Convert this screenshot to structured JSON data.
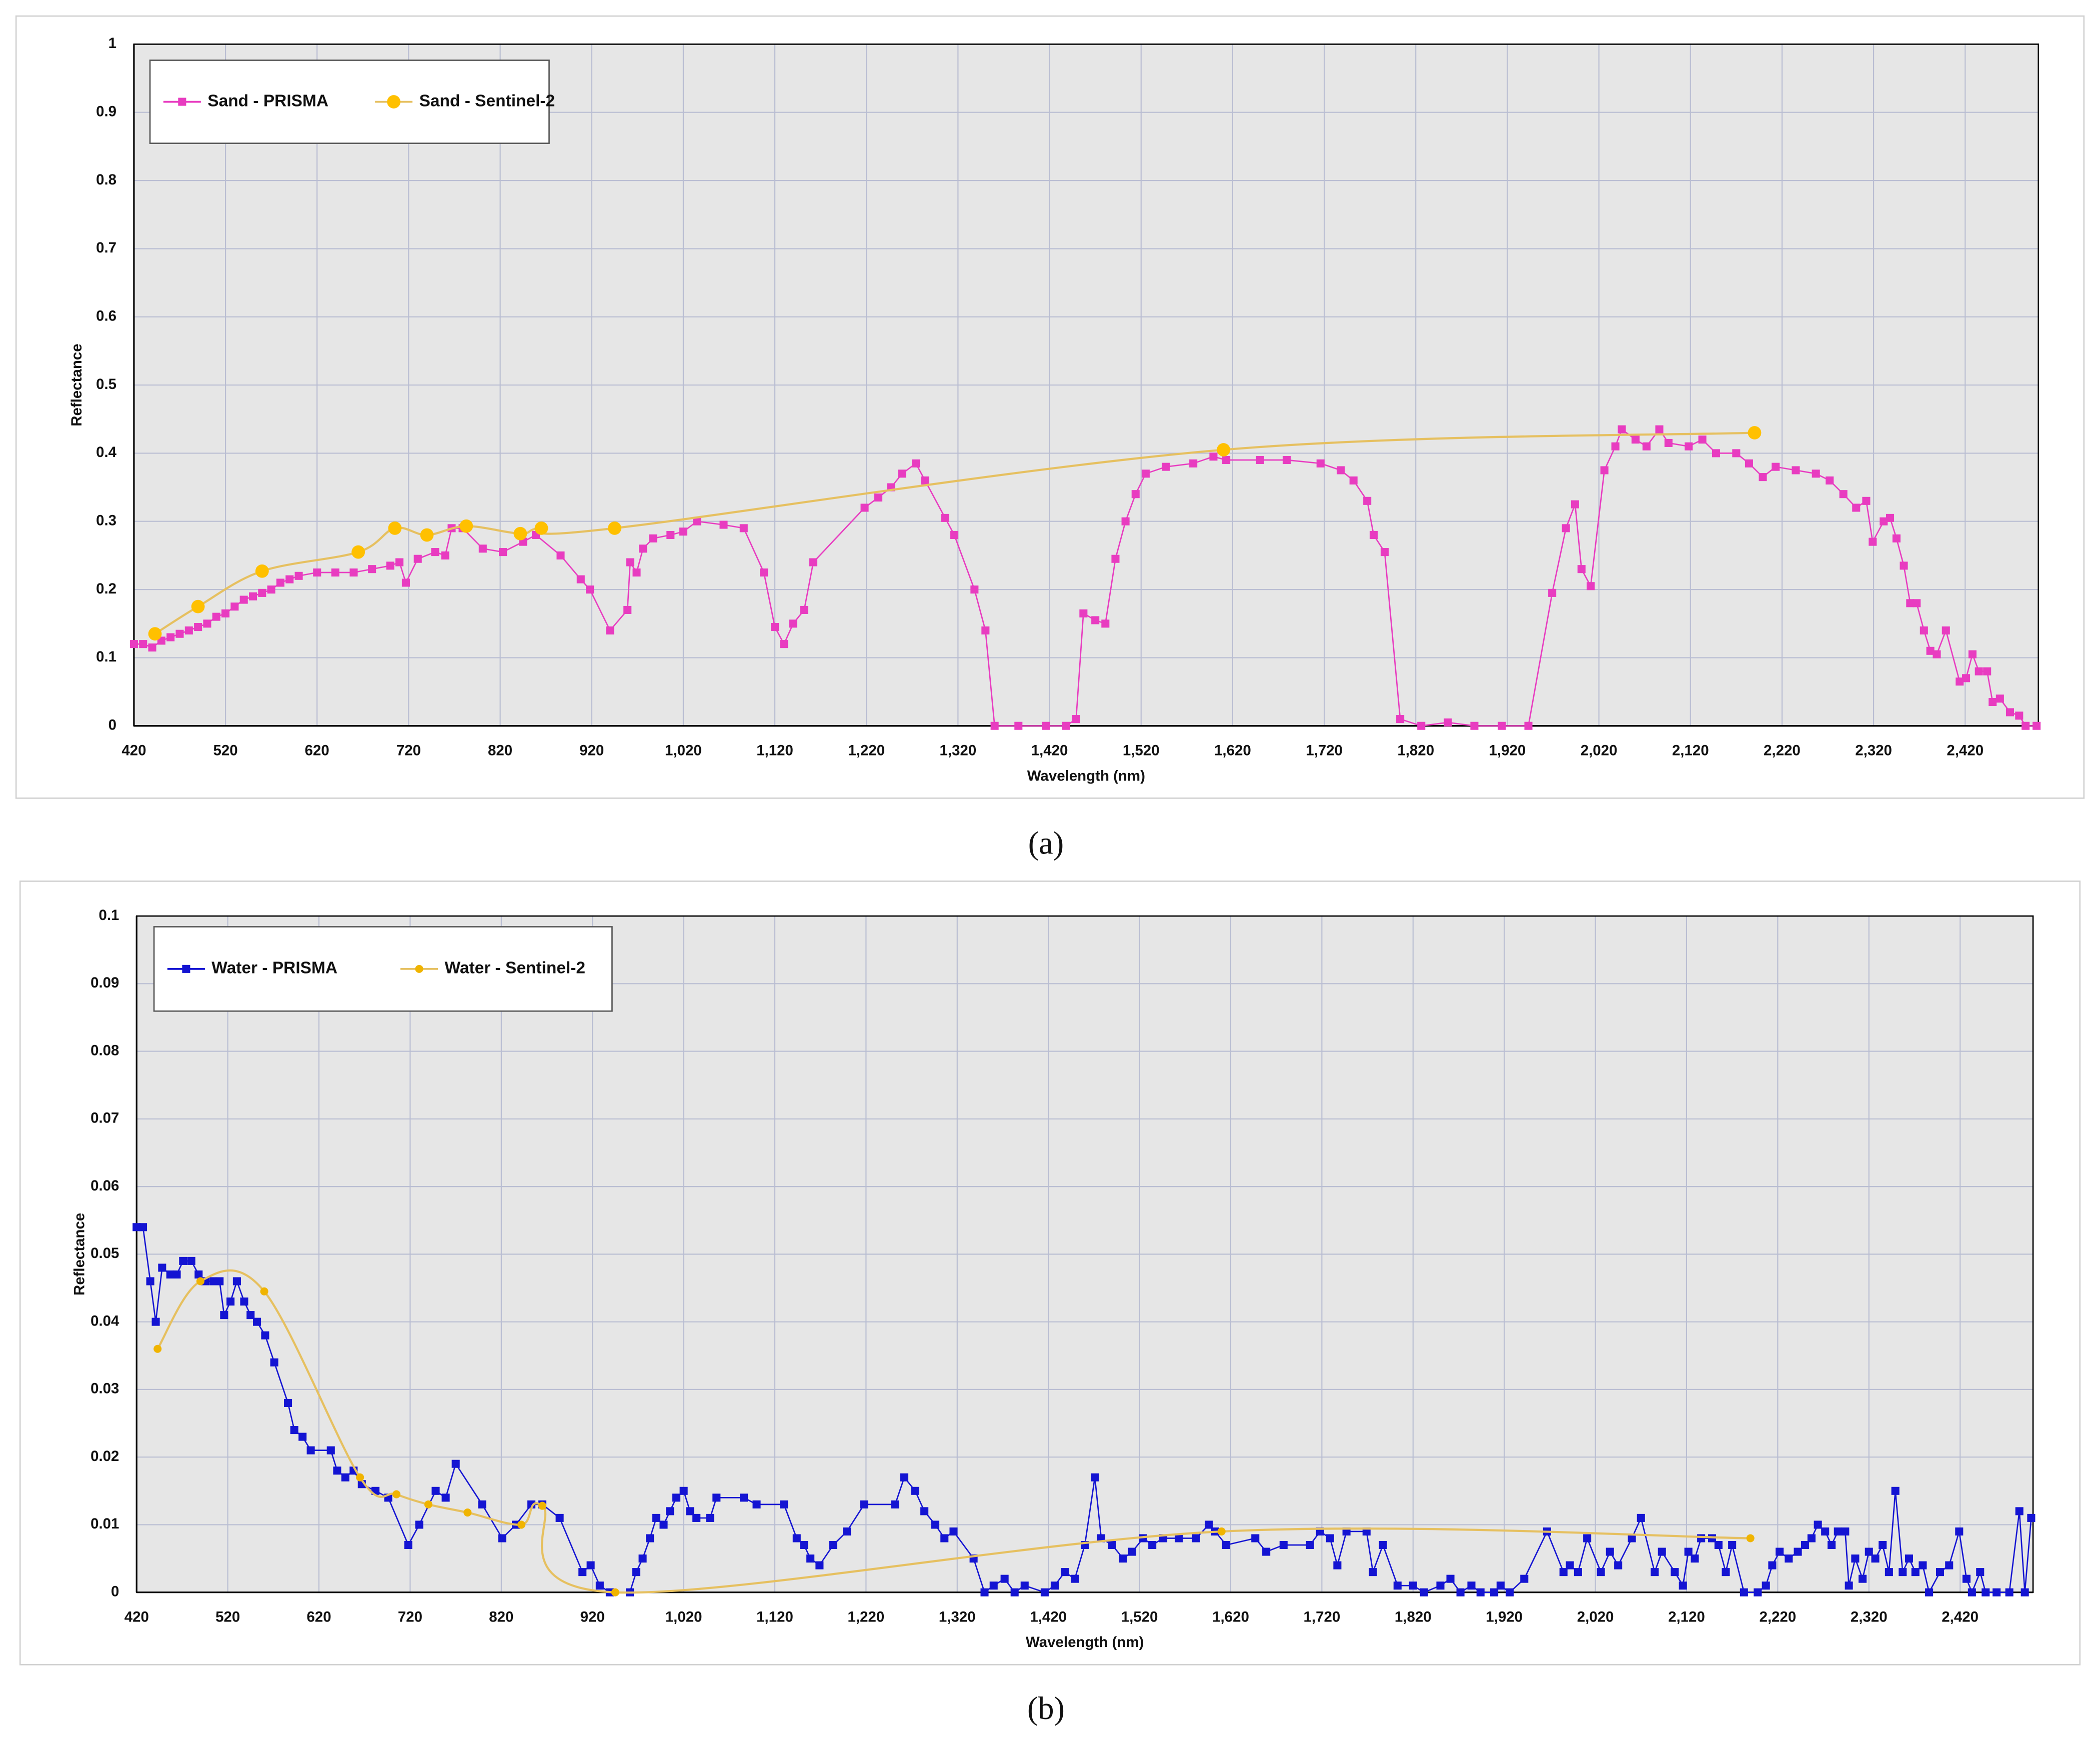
{
  "chart_data": [
    {
      "type": "line",
      "caption": "(a)",
      "xlabel": "Wavelength (nm)",
      "ylabel": "Reflectance",
      "xlim": [
        420,
        2500
      ],
      "ylim": [
        0,
        1
      ],
      "xticks": [
        420,
        520,
        620,
        720,
        820,
        920,
        {
          "value": 1020,
          "label": "1,020"
        },
        {
          "value": 1120,
          "label": "1,120"
        },
        {
          "value": 1220,
          "label": "1,220"
        },
        {
          "value": 1320,
          "label": "1,320"
        },
        {
          "value": 1420,
          "label": "1,420"
        },
        {
          "value": 1520,
          "label": "1,520"
        },
        {
          "value": 1620,
          "label": "1,620"
        },
        {
          "value": 1720,
          "label": "1,720"
        },
        {
          "value": 1820,
          "label": "1,820"
        },
        {
          "value": 1920,
          "label": "1,920"
        },
        {
          "value": 2020,
          "label": "2,020"
        },
        {
          "value": 2120,
          "label": "2,120"
        },
        {
          "value": 2220,
          "label": "2,220"
        },
        {
          "value": 2320,
          "label": "2,320"
        },
        {
          "value": 2420,
          "label": "2,420"
        }
      ],
      "yticks": [
        0,
        0.1,
        0.2,
        0.3,
        0.4,
        0.5,
        0.6,
        0.7,
        0.8,
        0.9,
        1
      ],
      "grid": true,
      "legend": "upper left",
      "series": [
        {
          "name": "Sand - PRISMA",
          "color": "#e83cc0",
          "marker": "square",
          "smooth": false,
          "x": [
            420,
            430,
            440,
            450,
            460,
            470,
            480,
            490,
            500,
            510,
            520,
            530,
            540,
            550,
            560,
            570,
            580,
            590,
            600,
            620,
            640,
            660,
            680,
            700,
            710,
            717,
            730,
            749,
            760,
            767,
            779,
            801,
            823,
            845,
            859,
            886,
            908,
            918,
            940,
            959,
            962,
            969,
            976,
            987,
            1006,
            1020,
            1035,
            1064,
            1086,
            1108,
            1120,
            1130,
            1140,
            1152,
            1162,
            1218,
            1233,
            1247,
            1259,
            1274,
            1284,
            1306,
            1316,
            1338,
            1350,
            1360,
            1386,
            1416,
            1438,
            1449,
            1457,
            1470,
            1481,
            1492,
            1503,
            1514,
            1525,
            1547,
            1577,
            1599,
            1613,
            1650,
            1679,
            1716,
            1738,
            1752,
            1767,
            1774,
            1786,
            1803,
            1826,
            1855,
            1884,
            1914,
            1943,
            1969,
            1984,
            1994,
            2001,
            2011,
            2026,
            2038,
            2045,
            2060,
            2072,
            2086,
            2096,
            2118,
            2133,
            2148,
            2170,
            2184,
            2199,
            2213,
            2235,
            2257,
            2272,
            2287,
            2301,
            2312,
            2319,
            2331,
            2338,
            2345,
            2353,
            2360,
            2367,
            2375,
            2382,
            2389,
            2399,
            2414,
            2421,
            2428,
            2435,
            2444,
            2450,
            2458,
            2469,
            2479,
            2486,
            2498
          ],
          "values": [
            0.12,
            0.12,
            0.115,
            0.125,
            0.13,
            0.135,
            0.14,
            0.145,
            0.15,
            0.16,
            0.165,
            0.175,
            0.185,
            0.19,
            0.195,
            0.2,
            0.21,
            0.215,
            0.22,
            0.225,
            0.225,
            0.225,
            0.23,
            0.235,
            0.24,
            0.21,
            0.245,
            0.255,
            0.25,
            0.29,
            0.29,
            0.26,
            0.255,
            0.27,
            0.28,
            0.25,
            0.215,
            0.2,
            0.14,
            0.17,
            0.24,
            0.225,
            0.26,
            0.275,
            0.28,
            0.285,
            0.3,
            0.295,
            0.29,
            0.225,
            0.145,
            0.12,
            0.15,
            0.17,
            0.24,
            0.32,
            0.335,
            0.35,
            0.37,
            0.385,
            0.36,
            0.305,
            0.28,
            0.2,
            0.14,
            0,
            0,
            0,
            0,
            0.01,
            0.165,
            0.155,
            0.15,
            0.245,
            0.3,
            0.34,
            0.37,
            0.38,
            0.385,
            0.395,
            0.39,
            0.39,
            0.39,
            0.385,
            0.375,
            0.36,
            0.33,
            0.28,
            0.255,
            0.01,
            0,
            0.005,
            0,
            0,
            0,
            0.195,
            0.29,
            0.325,
            0.23,
            0.205,
            0.375,
            0.41,
            0.435,
            0.42,
            0.41,
            0.435,
            0.415,
            0.41,
            0.42,
            0.4,
            0.4,
            0.385,
            0.365,
            0.38,
            0.375,
            0.37,
            0.36,
            0.34,
            0.32,
            0.33,
            0.27,
            0.3,
            0.305,
            0.275,
            0.235,
            0.18,
            0.18,
            0.14,
            0.11,
            0.105,
            0.14,
            0.065,
            0.07,
            0.105,
            0.08,
            0.08,
            0.035,
            0.04,
            0.02,
            0.015,
            0,
            0
          ]
        },
        {
          "name": "Sand - Sentinel-2",
          "color": "#ffc000",
          "marker": "circle",
          "smooth": true,
          "x": [
            443,
            490,
            560,
            665,
            705,
            740,
            783,
            842,
            865,
            945,
            1610,
            2190
          ],
          "values": [
            0.135,
            0.175,
            0.227,
            0.255,
            0.29,
            0.28,
            0.293,
            0.282,
            0.29,
            0.29,
            0.405,
            0.43
          ]
        }
      ]
    },
    {
      "type": "line",
      "caption": "(b)",
      "xlabel": "Wavelength (nm)",
      "ylabel": "Reflectance",
      "xlim": [
        420,
        2500
      ],
      "ylim": [
        0,
        0.1
      ],
      "xticks": [
        420,
        520,
        620,
        720,
        820,
        920,
        {
          "value": 1020,
          "label": "1,020"
        },
        {
          "value": 1120,
          "label": "1,120"
        },
        {
          "value": 1220,
          "label": "1,220"
        },
        {
          "value": 1320,
          "label": "1,320"
        },
        {
          "value": 1420,
          "label": "1,420"
        },
        {
          "value": 1520,
          "label": "1,520"
        },
        {
          "value": 1620,
          "label": "1,620"
        },
        {
          "value": 1720,
          "label": "1,720"
        },
        {
          "value": 1820,
          "label": "1,820"
        },
        {
          "value": 1920,
          "label": "1,920"
        },
        {
          "value": 2020,
          "label": "2,020"
        },
        {
          "value": 2120,
          "label": "2,120"
        },
        {
          "value": 2220,
          "label": "2,220"
        },
        {
          "value": 2320,
          "label": "2,320"
        },
        {
          "value": 2420,
          "label": "2,420"
        }
      ],
      "yticks": [
        0,
        0.01,
        0.02,
        0.03,
        0.04,
        0.05,
        0.06,
        0.07,
        0.08,
        0.09,
        0.1
      ],
      "grid": true,
      "legend": "upper left",
      "series": [
        {
          "name": "Water - PRISMA",
          "color": "#1414d2",
          "marker": "square",
          "smooth": false,
          "x": [
            420,
            427,
            435,
            441,
            448,
            457,
            464,
            471,
            480,
            488,
            495,
            504,
            511,
            516,
            523,
            530,
            538,
            545,
            552,
            561,
            571,
            586,
            593,
            602,
            611,
            633,
            640,
            649,
            658,
            667,
            682,
            696,
            718,
            730,
            748,
            759,
            770,
            799,
            821,
            836,
            853,
            865,
            884,
            909,
            918,
            928,
            939,
            961,
            968,
            975,
            983,
            990,
            998,
            1005,
            1012,
            1020,
            1027,
            1034,
            1049,
            1056,
            1086,
            1100,
            1130,
            1144,
            1152,
            1159,
            1169,
            1184,
            1199,
            1218,
            1252,
            1262,
            1274,
            1284,
            1296,
            1306,
            1316,
            1338,
            1350,
            1360,
            1372,
            1383,
            1394,
            1416,
            1427,
            1438,
            1449,
            1460,
            1471,
            1478,
            1490,
            1502,
            1512,
            1524,
            1534,
            1546,
            1563,
            1582,
            1596,
            1603,
            1615,
            1647,
            1659,
            1678,
            1707,
            1718,
            1729,
            1737,
            1747,
            1769,
            1776,
            1787,
            1803,
            1820,
            1832,
            1850,
            1861,
            1872,
            1884,
            1894,
            1909,
            1916,
            1926,
            1942,
            1967,
            1985,
            1992,
            2001,
            2011,
            2026,
            2036,
            2045,
            2060,
            2070,
            2085,
            2093,
            2107,
            2116,
            2122,
            2129,
            2136,
            2148,
            2155,
            2163,
            2170,
            2183,
            2198,
            2207,
            2214,
            2222,
            2232,
            2242,
            2250,
            2257,
            2264,
            2272,
            2279,
            2286,
            2294,
            2298,
            2305,
            2313,
            2320,
            2327,
            2335,
            2342,
            2349,
            2357,
            2364,
            2371,
            2379,
            2386,
            2398,
            2408,
            2419,
            2427,
            2433,
            2442,
            2448,
            2460,
            2474,
            2485,
            2491,
            2498
          ],
          "values": [
            0.054,
            0.054,
            0.046,
            0.04,
            0.048,
            0.047,
            0.047,
            0.049,
            0.049,
            0.047,
            0.046,
            0.046,
            0.046,
            0.041,
            0.043,
            0.046,
            0.043,
            0.041,
            0.04,
            0.038,
            0.034,
            0.028,
            0.024,
            0.023,
            0.021,
            0.021,
            0.018,
            0.017,
            0.018,
            0.016,
            0.015,
            0.014,
            0.007,
            0.01,
            0.015,
            0.014,
            0.019,
            0.013,
            0.008,
            0.01,
            0.013,
            0.013,
            0.011,
            0.003,
            0.004,
            0.001,
            0,
            0,
            0.003,
            0.005,
            0.008,
            0.011,
            0.01,
            0.012,
            0.014,
            0.015,
            0.012,
            0.011,
            0.011,
            0.014,
            0.014,
            0.013,
            0.013,
            0.008,
            0.007,
            0.005,
            0.004,
            0.007,
            0.009,
            0.013,
            0.013,
            0.017,
            0.015,
            0.012,
            0.01,
            0.008,
            0.009,
            0.005,
            0,
            0.001,
            0.002,
            0,
            0.001,
            0,
            0.001,
            0.003,
            0.002,
            0.007,
            0.017,
            0.008,
            0.007,
            0.005,
            0.006,
            0.008,
            0.007,
            0.008,
            0.008,
            0.008,
            0.01,
            0.009,
            0.007,
            0.008,
            0.006,
            0.007,
            0.007,
            0.009,
            0.008,
            0.004,
            0.009,
            0.009,
            0.003,
            0.007,
            0.001,
            0.001,
            0,
            0.001,
            0.002,
            0,
            0.001,
            0,
            0,
            0.001,
            0,
            0.002,
            0.009,
            0.003,
            0.004,
            0.003,
            0.008,
            0.003,
            0.006,
            0.004,
            0.008,
            0.011,
            0.003,
            0.006,
            0.003,
            0.001,
            0.006,
            0.005,
            0.008,
            0.008,
            0.007,
            0.003,
            0.007,
            0,
            0,
            0.001,
            0.004,
            0.006,
            0.005,
            0.006,
            0.007,
            0.008,
            0.01,
            0.009,
            0.007,
            0.009,
            0.009,
            0.001,
            0.005,
            0.002,
            0.006,
            0.005,
            0.007,
            0.003,
            0.015,
            0.003,
            0.005,
            0.003,
            0.004,
            0,
            0.003,
            0.004,
            0.009,
            0.002,
            0,
            0.003,
            0,
            0,
            0,
            0.012,
            0,
            0.011
          ]
        },
        {
          "name": "Water - Sentinel-2",
          "color": "#f0b400",
          "marker": "circle",
          "smooth": true,
          "x": [
            443,
            490,
            560,
            665,
            705,
            740,
            783,
            842,
            865,
            945,
            1610,
            2190
          ],
          "values": [
            0.036,
            0.046,
            0.0445,
            0.017,
            0.0145,
            0.013,
            0.0118,
            0.01,
            0.0128,
            0,
            0.009,
            0.008
          ]
        }
      ]
    }
  ]
}
